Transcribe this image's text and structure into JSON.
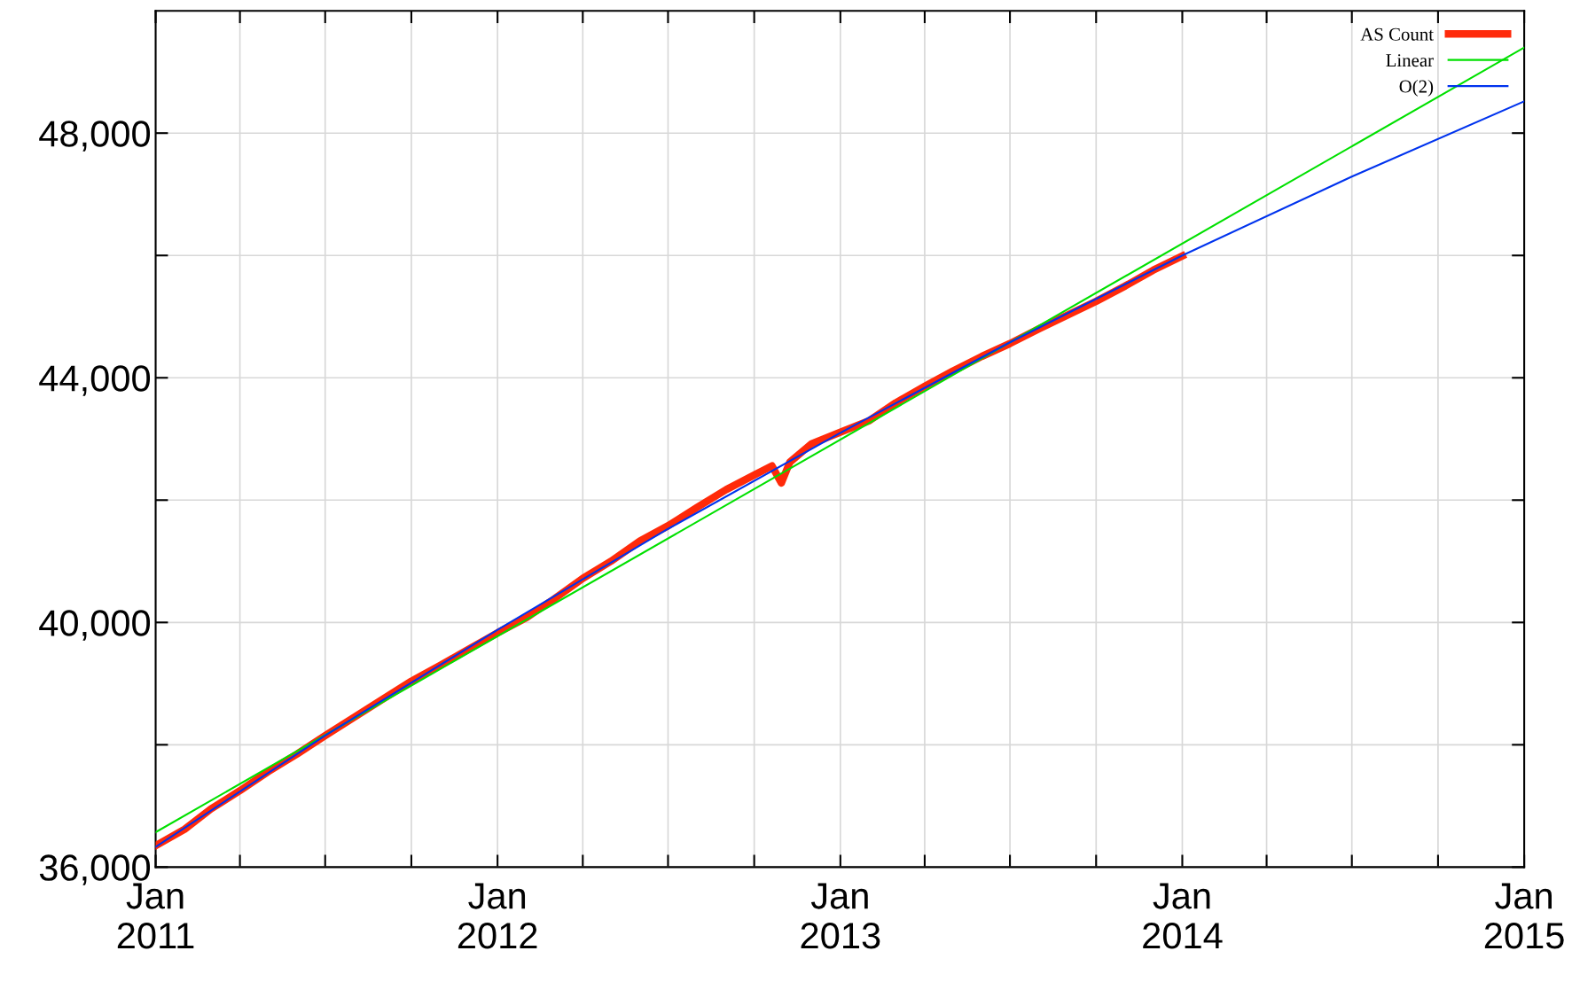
{
  "chart_data": {
    "type": "line",
    "xlim": [
      "2011-01-01",
      "2015-01-01"
    ],
    "ylim": [
      36000,
      50000
    ],
    "xticks": [
      {
        "value": "2011-01-01",
        "label": "Jan\n2011"
      },
      {
        "value": "2011-04-01",
        "label": null
      },
      {
        "value": "2011-07-01",
        "label": null
      },
      {
        "value": "2011-10-01",
        "label": null
      },
      {
        "value": "2012-01-01",
        "label": "Jan\n2012"
      },
      {
        "value": "2012-04-01",
        "label": null
      },
      {
        "value": "2012-07-01",
        "label": null
      },
      {
        "value": "2012-10-01",
        "label": null
      },
      {
        "value": "2013-01-01",
        "label": "Jan\n2013"
      },
      {
        "value": "2013-04-01",
        "label": null
      },
      {
        "value": "2013-07-01",
        "label": null
      },
      {
        "value": "2013-10-01",
        "label": null
      },
      {
        "value": "2014-01-01",
        "label": "Jan\n2014"
      },
      {
        "value": "2014-04-01",
        "label": null
      },
      {
        "value": "2014-07-01",
        "label": null
      },
      {
        "value": "2014-10-01",
        "label": null
      },
      {
        "value": "2015-01-01",
        "label": "Jan\n2015"
      }
    ],
    "yticks": [
      {
        "value": 36000,
        "label": "36,000"
      },
      {
        "value": 38000,
        "label": null
      },
      {
        "value": 40000,
        "label": "40,000"
      },
      {
        "value": 42000,
        "label": null
      },
      {
        "value": 44000,
        "label": "44,000"
      },
      {
        "value": 46000,
        "label": null
      },
      {
        "value": 48000,
        "label": "48,000"
      }
    ],
    "grid": true,
    "legend": "top right",
    "marker": "none",
    "line_style": "solid",
    "series": [
      {
        "name": "AS Count",
        "color": "#ff2a0a",
        "x": [
          "2011-01-01",
          "2011-02-01",
          "2011-03-01",
          "2011-04-01",
          "2011-05-01",
          "2011-06-01",
          "2011-07-01",
          "2011-08-01",
          "2011-09-01",
          "2011-10-01",
          "2011-11-01",
          "2011-12-01",
          "2012-01-01",
          "2012-02-01",
          "2012-03-01",
          "2012-04-01",
          "2012-05-01",
          "2012-06-01",
          "2012-07-01",
          "2012-08-01",
          "2012-09-01",
          "2012-10-01",
          "2012-10-20",
          "2012-10-30",
          "2012-11-08",
          "2012-12-01",
          "2013-01-01",
          "2013-02-01",
          "2013-03-01",
          "2013-04-01",
          "2013-05-01",
          "2013-06-01",
          "2013-07-01",
          "2013-08-01",
          "2013-09-01",
          "2013-10-01",
          "2013-11-01",
          "2013-12-01",
          "2014-01-01"
        ],
        "values": [
          36350,
          36620,
          36950,
          37250,
          37560,
          37850,
          38150,
          38450,
          38750,
          39040,
          39300,
          39560,
          39830,
          40080,
          40380,
          40720,
          41000,
          41330,
          41580,
          41880,
          42170,
          42410,
          42560,
          42280,
          42620,
          42920,
          43110,
          43300,
          43590,
          43860,
          44110,
          44350,
          44560,
          44800,
          45030,
          45250,
          45500,
          45760,
          45990
        ]
      },
      {
        "name": "Linear",
        "color": "#00e000",
        "x": [
          "2011-01-01",
          "2015-01-01"
        ],
        "values": [
          36570,
          49400
        ]
      },
      {
        "name": "O(2)",
        "color": "#0033ee",
        "x": [
          "2011-01-01",
          "2011-07-01",
          "2012-01-01",
          "2012-07-01",
          "2013-01-01",
          "2013-07-01",
          "2014-01-01",
          "2014-07-01",
          "2015-01-01"
        ],
        "values": [
          36330,
          38150,
          39880,
          41530,
          43100,
          44580,
          46000,
          47290,
          48520
        ]
      }
    ]
  }
}
